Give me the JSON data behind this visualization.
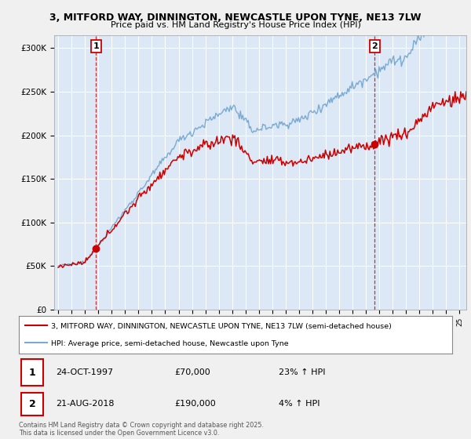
{
  "title1": "3, MITFORD WAY, DINNINGTON, NEWCASTLE UPON TYNE, NE13 7LW",
  "title2": "Price paid vs. HM Land Registry's House Price Index (HPI)",
  "yticks": [
    0,
    50000,
    100000,
    150000,
    200000,
    250000,
    300000
  ],
  "ytick_labels": [
    "£0",
    "£50K",
    "£100K",
    "£150K",
    "£200K",
    "£250K",
    "£300K"
  ],
  "xlim_start": 1994.7,
  "xlim_end": 2025.5,
  "ylim": [
    0,
    315000
  ],
  "background_color": "#f0f0f0",
  "plot_background": "#dce8f5",
  "red_color": "#cc0000",
  "blue_color": "#7aaad0",
  "grid_color": "#ffffff",
  "sale1_x": 1997.82,
  "sale1_y": 70000,
  "sale2_x": 2018.65,
  "sale2_y": 190000,
  "legend_line1": "3, MITFORD WAY, DINNINGTON, NEWCASTLE UPON TYNE, NE13 7LW (semi-detached house)",
  "legend_line2": "HPI: Average price, semi-detached house, Newcastle upon Tyne",
  "sale1_date": "24-OCT-1997",
  "sale1_price": "£70,000",
  "sale1_hpi": "23% ↑ HPI",
  "sale2_date": "21-AUG-2018",
  "sale2_price": "£190,000",
  "sale2_hpi": "4% ↑ HPI",
  "footer": "Contains HM Land Registry data © Crown copyright and database right 2025.\nThis data is licensed under the Open Government Licence v3.0."
}
